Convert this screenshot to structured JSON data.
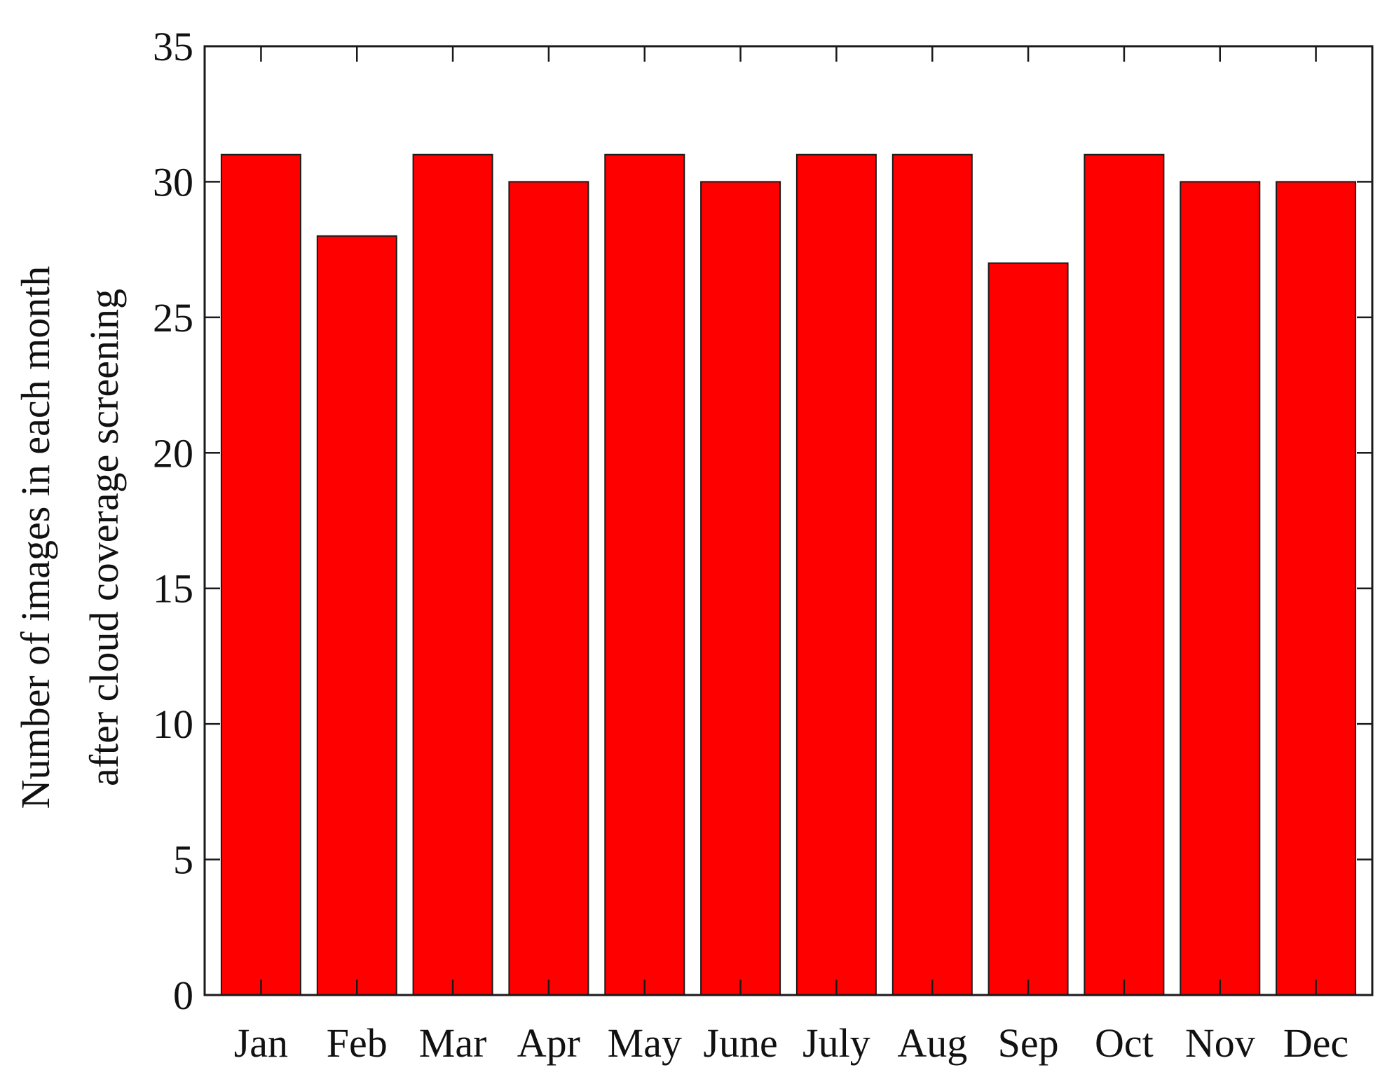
{
  "chart_data": {
    "type": "bar",
    "categories": [
      "Jan",
      "Feb",
      "Mar",
      "Apr",
      "May",
      "June",
      "July",
      "Aug",
      "Sep",
      "Oct",
      "Nov",
      "Dec"
    ],
    "values": [
      31,
      28,
      31,
      30,
      31,
      30,
      31,
      31,
      27,
      31,
      30,
      30
    ],
    "title": "",
    "xlabel": "",
    "ylabel_lines": [
      "Number of images in each month",
      "after cloud coverage screening"
    ],
    "ylim": [
      0,
      35
    ],
    "yticks": [
      0,
      5,
      10,
      15,
      20,
      25,
      30,
      35
    ],
    "grid": false,
    "legend": "none",
    "bar_color": "#ff0000"
  }
}
